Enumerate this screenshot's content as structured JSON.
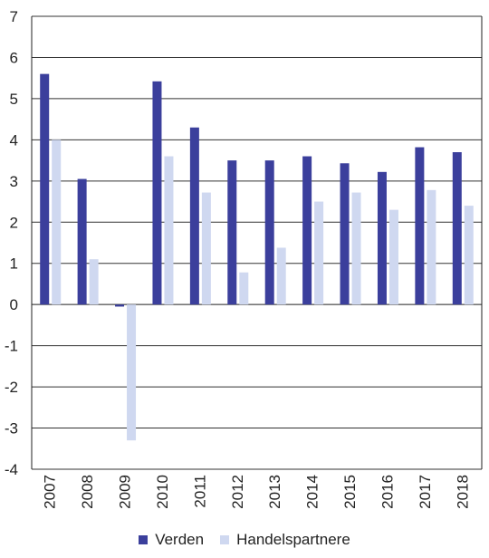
{
  "chart_data": {
    "type": "bar",
    "categories": [
      "2007",
      "2008",
      "2009",
      "2010",
      "2011",
      "2012",
      "2013",
      "2014",
      "2015",
      "2016",
      "2017",
      "2018"
    ],
    "series": [
      {
        "name": "Verden",
        "color": "#3b3f9c",
        "values": [
          5.6,
          3.05,
          -0.05,
          5.42,
          4.3,
          3.5,
          3.5,
          3.6,
          3.43,
          3.22,
          3.82,
          3.7
        ]
      },
      {
        "name": "Handelspartnere",
        "color": "#cfd8f0",
        "values": [
          4.0,
          1.1,
          -3.3,
          3.6,
          2.72,
          0.78,
          1.38,
          2.5,
          2.72,
          2.3,
          2.78,
          2.4
        ]
      }
    ],
    "ylim": [
      -4,
      7
    ],
    "yticks": [
      "-4",
      "-3",
      "-2",
      "-1",
      "0",
      "1",
      "2",
      "3",
      "4",
      "5",
      "6",
      "7"
    ],
    "title": "",
    "xlabel": "",
    "ylabel": "",
    "grid": true,
    "legend_position": "bottom"
  }
}
